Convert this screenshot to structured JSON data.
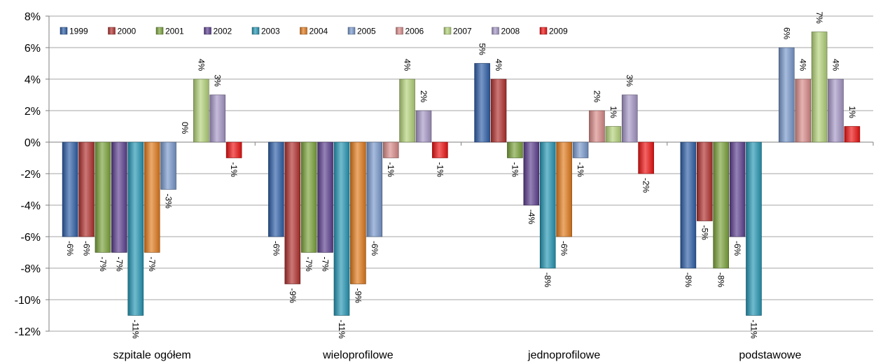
{
  "chart_data": {
    "type": "bar",
    "categories": [
      "szpitale ogółem",
      "wieloprofilowe",
      "jednoprofilowe",
      "podstawowe"
    ],
    "ylim": [
      -12,
      8
    ],
    "yticks": [
      -12,
      -10,
      -8,
      -6,
      -4,
      -2,
      0,
      2,
      4,
      6,
      8
    ],
    "ytick_labels": [
      "-12%",
      "-10%",
      "-8%",
      "-6%",
      "-4%",
      "-2%",
      "0%",
      "2%",
      "4%",
      "6%",
      "8%"
    ],
    "grid": true,
    "legend_position": "top-left",
    "series": [
      {
        "name": "1999",
        "color": "#2e5fa8",
        "values": [
          -6,
          -6,
          5,
          -8
        ]
      },
      {
        "name": "2000",
        "color": "#b0302d",
        "values": [
          -6,
          -9,
          4,
          -5
        ]
      },
      {
        "name": "2001",
        "color": "#7ba33a",
        "values": [
          -7,
          -7,
          -1,
          -8
        ]
      },
      {
        "name": "2002",
        "color": "#5c3f8f",
        "values": [
          -7,
          -7,
          -4,
          -6
        ]
      },
      {
        "name": "2003",
        "color": "#2596b4",
        "values": [
          -11,
          -11,
          -8,
          -11
        ]
      },
      {
        "name": "2004",
        "color": "#e27a1c",
        "values": [
          -7,
          -9,
          -6,
          null
        ]
      },
      {
        "name": "2005",
        "color": "#7898cc",
        "values": [
          -3,
          -6,
          -1,
          6
        ]
      },
      {
        "name": "2006",
        "color": "#d88a88",
        "values": [
          null,
          -1,
          2,
          4
        ]
      },
      {
        "name": "2007",
        "color": "#b4d279",
        "values": [
          4,
          4,
          1,
          7
        ]
      },
      {
        "name": "2008",
        "color": "#a596c6",
        "values": [
          3,
          2,
          3,
          4
        ]
      },
      {
        "name": "2009",
        "color": "#ee1111",
        "values": [
          -1,
          -1,
          -2,
          1
        ]
      }
    ],
    "data_labels": [
      [
        "-6%",
        "-6%",
        "-7%",
        "-7%",
        "-11%",
        "-7%",
        "-3%",
        "0%",
        "4%",
        "3%",
        "-1%"
      ],
      [
        "-6%",
        "-9%",
        "-7%",
        "-7%",
        "-11%",
        "-9%",
        "-6%",
        "-1%",
        "4%",
        "2%",
        "-1%"
      ],
      [
        "5%",
        "4%",
        "-1%",
        "-4%",
        "-8%",
        "-6%",
        "-1%",
        "2%",
        "1%",
        "3%",
        "-2%"
      ],
      [
        "-8%",
        "-5%",
        "-8%",
        "-6%",
        "-11%",
        "",
        "6%",
        "4%",
        "7%",
        "4%",
        "1%"
      ]
    ]
  }
}
